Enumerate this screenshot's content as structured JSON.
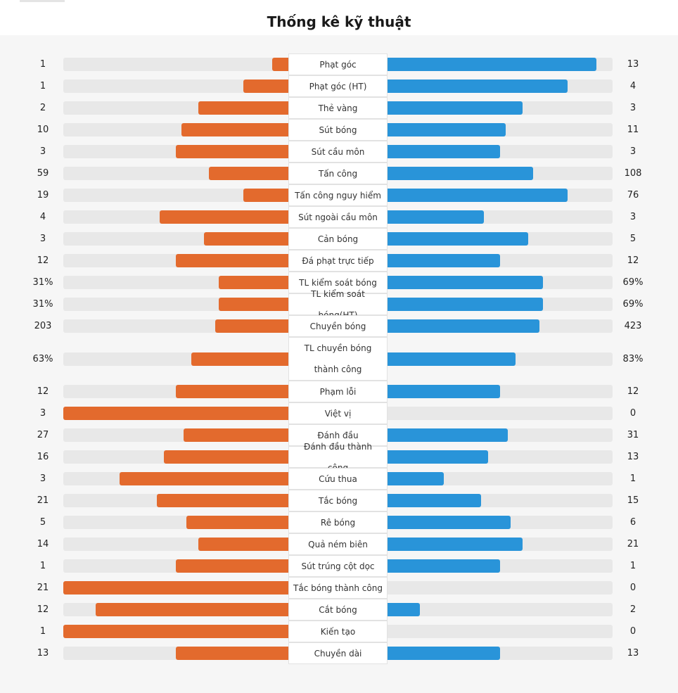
{
  "title": "Thống kê kỹ thuật",
  "colors": {
    "home": "#e36a2d",
    "away": "#2994d9",
    "track": "#e8e8e8"
  },
  "chart_data": {
    "type": "bar",
    "orientation": "horizontal-diverging",
    "title": "Thống kê kỹ thuật",
    "series": [
      {
        "name": "home",
        "color": "#e36a2d"
      },
      {
        "name": "away",
        "color": "#2994d9"
      }
    ],
    "stats": [
      {
        "label": "Phạt góc",
        "home": "1",
        "away": "13",
        "home_value": 1,
        "away_value": 13
      },
      {
        "label": "Phạt góc (HT)",
        "home": "1",
        "away": "4",
        "home_value": 1,
        "away_value": 4
      },
      {
        "label": "Thẻ vàng",
        "home": "2",
        "away": "3",
        "home_value": 2,
        "away_value": 3
      },
      {
        "label": "Sút bóng",
        "home": "10",
        "away": "11",
        "home_value": 10,
        "away_value": 11
      },
      {
        "label": "Sút cầu môn",
        "home": "3",
        "away": "3",
        "home_value": 3,
        "away_value": 3
      },
      {
        "label": "Tấn công",
        "home": "59",
        "away": "108",
        "home_value": 59,
        "away_value": 108
      },
      {
        "label": "Tấn công nguy hiểm",
        "home": "19",
        "away": "76",
        "home_value": 19,
        "away_value": 76
      },
      {
        "label": "Sút ngoài cầu môn",
        "home": "4",
        "away": "3",
        "home_value": 4,
        "away_value": 3
      },
      {
        "label": "Cản bóng",
        "home": "3",
        "away": "5",
        "home_value": 3,
        "away_value": 5
      },
      {
        "label": "Đá phạt trực tiếp",
        "home": "12",
        "away": "12",
        "home_value": 12,
        "away_value": 12
      },
      {
        "label": "TL kiểm soát bóng",
        "home": "31%",
        "away": "69%",
        "home_value": 31,
        "away_value": 69
      },
      {
        "label": "TL kiểm soát bóng(HT)",
        "home": "31%",
        "away": "69%",
        "home_value": 31,
        "away_value": 69
      },
      {
        "label": "Chuyền bóng",
        "home": "203",
        "away": "423",
        "home_value": 203,
        "away_value": 423
      },
      {
        "label": "TL chuyền bóng thành công",
        "home": "63%",
        "away": "83%",
        "home_value": 63,
        "away_value": 83
      },
      {
        "label": "Phạm lỗi",
        "home": "12",
        "away": "12",
        "home_value": 12,
        "away_value": 12
      },
      {
        "label": "Việt vị",
        "home": "3",
        "away": "0",
        "home_value": 3,
        "away_value": 0
      },
      {
        "label": "Đánh đầu",
        "home": "27",
        "away": "31",
        "home_value": 27,
        "away_value": 31
      },
      {
        "label": "Đánh đầu thành công",
        "home": "16",
        "away": "13",
        "home_value": 16,
        "away_value": 13
      },
      {
        "label": "Cứu thua",
        "home": "3",
        "away": "1",
        "home_value": 3,
        "away_value": 1
      },
      {
        "label": "Tắc bóng",
        "home": "21",
        "away": "15",
        "home_value": 21,
        "away_value": 15
      },
      {
        "label": "Rê bóng",
        "home": "5",
        "away": "6",
        "home_value": 5,
        "away_value": 6
      },
      {
        "label": "Quả ném biên",
        "home": "14",
        "away": "21",
        "home_value": 14,
        "away_value": 21
      },
      {
        "label": "Sút trúng cột dọc",
        "home": "1",
        "away": "1",
        "home_value": 1,
        "away_value": 1
      },
      {
        "label": "Tắc bóng thành công",
        "home": "21",
        "away": "0",
        "home_value": 21,
        "away_value": 0
      },
      {
        "label": "Cắt bóng",
        "home": "12",
        "away": "2",
        "home_value": 12,
        "away_value": 2
      },
      {
        "label": "Kiến tạo",
        "home": "1",
        "away": "0",
        "home_value": 1,
        "away_value": 0
      },
      {
        "label": "Chuyền dài",
        "home": "13",
        "away": "13",
        "home_value": 13,
        "away_value": 13
      }
    ]
  }
}
